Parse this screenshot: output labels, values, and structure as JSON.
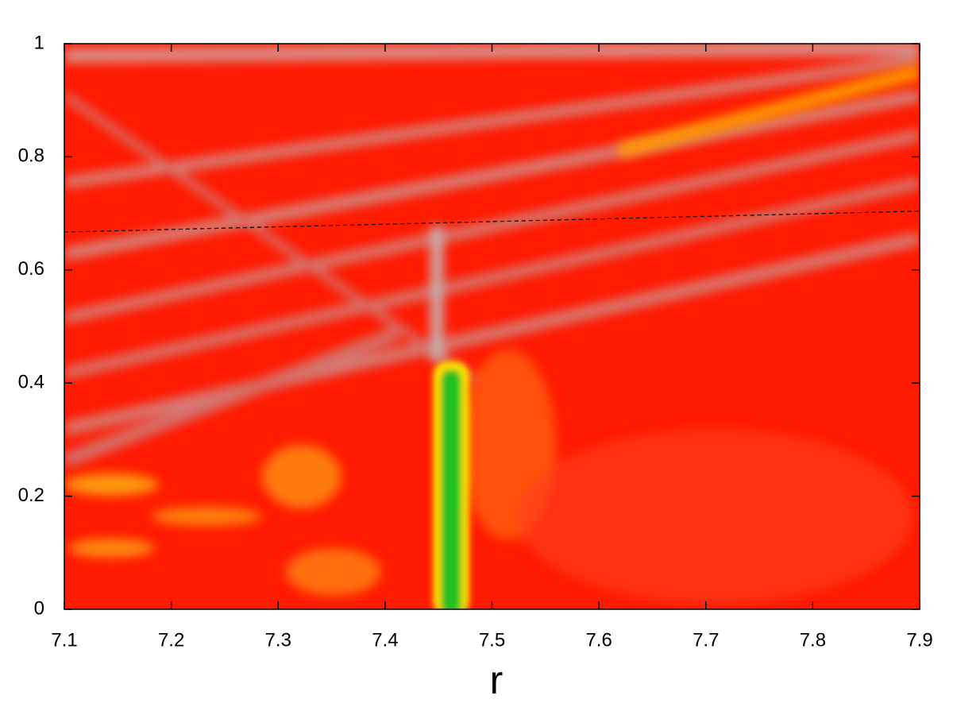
{
  "chart_data": {
    "type": "line",
    "x_label": "r",
    "xlim": [
      7.1,
      7.9
    ],
    "xticks": [
      7.1,
      7.2,
      7.3,
      7.4,
      7.5,
      7.6,
      7.7,
      7.8,
      7.9
    ],
    "ylim": [
      0,
      1
    ],
    "yticks": [
      0,
      0.2,
      0.4,
      0.6,
      0.8,
      1
    ],
    "series": [
      {
        "x": [
          7.1,
          7.9
        ],
        "values": [
          0.667,
          0.704
        ],
        "color": "#000000",
        "dashed": true
      }
    ]
  }
}
